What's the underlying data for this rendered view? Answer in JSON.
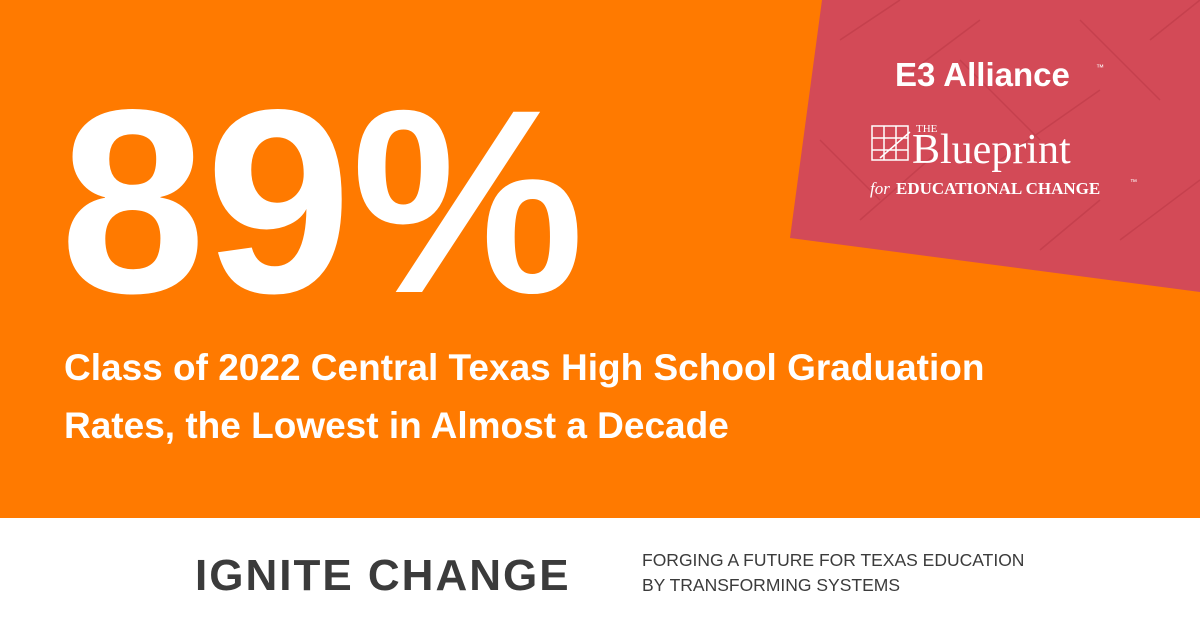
{
  "headline": {
    "stat": "89%",
    "lines": [
      "Class of 2022 Central Texas High School Graduation",
      "Rates, the Lowest in Almost a Decade"
    ]
  },
  "logo": {
    "org": "E3 Alliance",
    "org_tm": "™",
    "the": "THE",
    "name": "Blueprint",
    "for": "for",
    "tagline": "EDUCATIONAL CHANGE",
    "tagline_tm": "™"
  },
  "footer": {
    "title": "IGNITE CHANGE",
    "lines": [
      "FORGING A FUTURE FOR TEXAS EDUCATION",
      "BY TRANSFORMING SYSTEMS"
    ]
  }
}
